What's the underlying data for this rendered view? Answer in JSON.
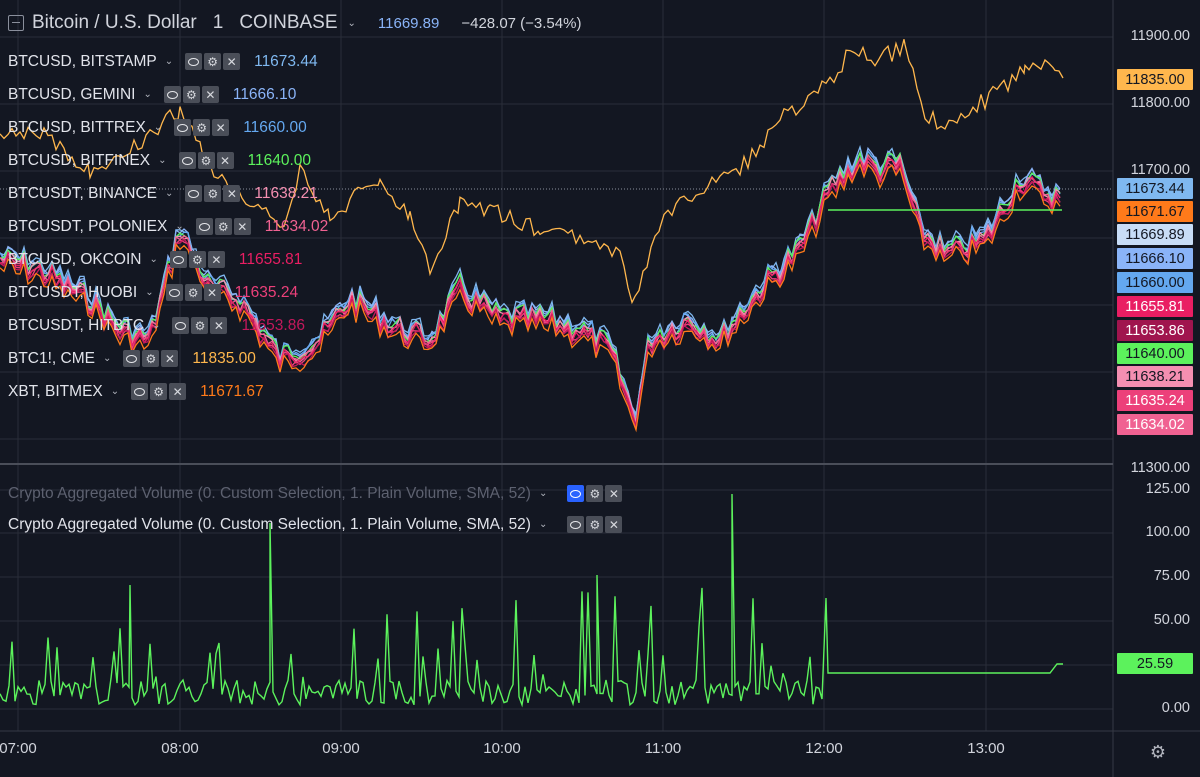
{
  "header": {
    "symbol_title": "Bitcoin / U.S. Dollar",
    "interval": "1",
    "exchange": "COINBASE",
    "last_price": "11669.89",
    "change": "−428.07 (−3.54%)"
  },
  "legend": [
    {
      "name": "BTCUSD, BITSTAMP",
      "value": "11673.44",
      "color": "#7fb8f0"
    },
    {
      "name": "BTCUSD, GEMINI",
      "value": "11666.10",
      "color": "#8ab4f8"
    },
    {
      "name": "BTCUSD, BITTREX",
      "value": "11660.00",
      "color": "#64a8f0"
    },
    {
      "name": "BTCUSD, BITFINEX",
      "value": "11640.00",
      "color": "#5cf25c"
    },
    {
      "name": "BTCUSDT, BINANCE",
      "value": "11638.21",
      "color": "#f48fb1"
    },
    {
      "name": "BTCUSDT, POLONIEX",
      "value": "11634.02",
      "color": "#f06292"
    },
    {
      "name": "BTCUSD, OKCOIN",
      "value": "11655.81",
      "color": "#e91e63"
    },
    {
      "name": "BTCUSDT, HUOBI",
      "value": "11635.24",
      "color": "#ec407a"
    },
    {
      "name": "BTCUSDT, HITBTC",
      "value": "11653.86",
      "color": "#c2185b"
    },
    {
      "name": "BTC1!, CME",
      "value": "11835.00",
      "color": "#ffb74d"
    },
    {
      "name": "XBT, BITMEX",
      "value": "11671.67",
      "color": "#ff7a1a"
    }
  ],
  "volume_legend": [
    {
      "label": "Crypto Aggregated Volume (0. Custom Selection, 1. Plain Volume, SMA, 52)",
      "hidden": true
    },
    {
      "label": "Crypto Aggregated Volume (0. Custom Selection, 1. Plain Volume, SMA, 52)",
      "hidden": false
    }
  ],
  "price_axis": [
    "11900.00",
    "11800.00",
    "11700.00",
    "11300.00"
  ],
  "volume_axis": [
    "125.00",
    "100.00",
    "75.00",
    "50.00",
    "0.00"
  ],
  "price_tags": [
    {
      "value": "11835.00",
      "bg": "#ffb74d",
      "fg": "#131722"
    },
    {
      "value": "11673.44",
      "bg": "#7fb8f0",
      "fg": "#131722"
    },
    {
      "value": "11671.67",
      "bg": "#ff7a1a",
      "fg": "#131722"
    },
    {
      "value": "11669.89",
      "bg": "#c8ddf7",
      "fg": "#131722"
    },
    {
      "value": "11666.10",
      "bg": "#8ab4f8",
      "fg": "#131722"
    },
    {
      "value": "11660.00",
      "bg": "#64a8f0",
      "fg": "#131722"
    },
    {
      "value": "11655.81",
      "bg": "#e91e63",
      "fg": "#ffffff"
    },
    {
      "value": "11653.86",
      "bg": "#a0154e",
      "fg": "#ffffff"
    },
    {
      "value": "11640.00",
      "bg": "#5cf25c",
      "fg": "#131722"
    },
    {
      "value": "11638.21",
      "bg": "#f48fb1",
      "fg": "#131722"
    },
    {
      "value": "11635.24",
      "bg": "#ec407a",
      "fg": "#ffffff"
    },
    {
      "value": "11634.02",
      "bg": "#f06292",
      "fg": "#ffffff"
    }
  ],
  "volume_tag": {
    "value": "25.59",
    "bg": "#5cf25c",
    "fg": "#131722"
  },
  "time_axis": [
    "07:00",
    "08:00",
    "09:00",
    "10:00",
    "11:00",
    "12:00",
    "13:00"
  ],
  "colors": {
    "background": "#131722",
    "grid": "#2a2e39",
    "volume_line": "#5cf25c",
    "cme_line": "#ffb74d",
    "flat_line": "#5cf25c"
  }
}
